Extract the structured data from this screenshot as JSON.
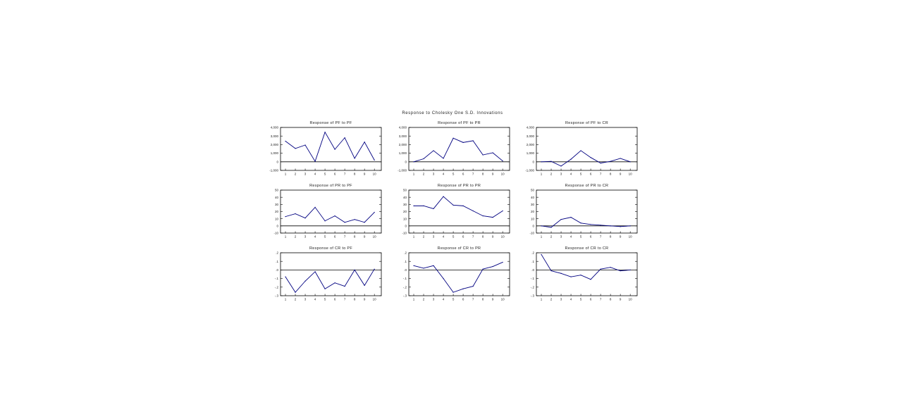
{
  "figure": {
    "title": "Response to Cholesky One S.D. Innovations"
  },
  "style": {
    "line_color": "#000080",
    "axis_color": "#000000",
    "text_color": "#222222",
    "background": "#ffffff"
  },
  "chart_data": [
    {
      "type": "line",
      "title": "Response of PF to PF",
      "x": [
        1,
        2,
        3,
        4,
        5,
        6,
        7,
        8,
        9,
        10
      ],
      "series": [
        {
          "values": [
            2400,
            1550,
            1950,
            50,
            3450,
            1450,
            2800,
            400,
            2300,
            200
          ]
        }
      ],
      "ylim": [
        -1000,
        4000
      ],
      "yticks": [
        -1000,
        0,
        1000,
        2000,
        3000,
        4000
      ],
      "ytick_labels": [
        "-1,000",
        "0",
        "1,000",
        "2,000",
        "3,000",
        "4,000"
      ]
    },
    {
      "type": "line",
      "title": "Response of PF to PR",
      "x": [
        1,
        2,
        3,
        4,
        5,
        6,
        7,
        8,
        9,
        10
      ],
      "series": [
        {
          "values": [
            0,
            350,
            1300,
            400,
            2750,
            2250,
            2450,
            800,
            1050,
            100
          ]
        }
      ],
      "ylim": [
        -1000,
        4000
      ],
      "yticks": [
        -1000,
        0,
        1000,
        2000,
        3000,
        4000
      ],
      "ytick_labels": [
        "-1,000",
        "0",
        "1,000",
        "2,000",
        "3,000",
        "4,000"
      ]
    },
    {
      "type": "line",
      "title": "Response of PF to CR",
      "x": [
        1,
        2,
        3,
        4,
        5,
        6,
        7,
        8,
        9,
        10
      ],
      "series": [
        {
          "values": [
            0,
            50,
            -500,
            300,
            1300,
            500,
            -150,
            50,
            400,
            0
          ]
        }
      ],
      "ylim": [
        -1000,
        4000
      ],
      "yticks": [
        -1000,
        0,
        1000,
        2000,
        3000,
        4000
      ],
      "ytick_labels": [
        "-1,000",
        "0",
        "1,000",
        "2,000",
        "3,000",
        "4,000"
      ]
    },
    {
      "type": "line",
      "title": "Response of PR to PF",
      "x": [
        1,
        2,
        3,
        4,
        5,
        6,
        7,
        8,
        9,
        10
      ],
      "series": [
        {
          "values": [
            13,
            17,
            11,
            26,
            7,
            14,
            5,
            9,
            5,
            19
          ]
        }
      ],
      "ylim": [
        -10,
        50
      ],
      "yticks": [
        -10,
        0,
        10,
        20,
        30,
        40,
        50
      ],
      "ytick_labels": [
        "-10",
        "0",
        "10",
        "20",
        "30",
        "40",
        "50"
      ]
    },
    {
      "type": "line",
      "title": "Response of PR to PR",
      "x": [
        1,
        2,
        3,
        4,
        5,
        6,
        7,
        8,
        9,
        10
      ],
      "series": [
        {
          "values": [
            28,
            28,
            24,
            41,
            29,
            28,
            21,
            14,
            12,
            21
          ]
        }
      ],
      "ylim": [
        -10,
        50
      ],
      "yticks": [
        -10,
        0,
        10,
        20,
        30,
        40,
        50
      ],
      "ytick_labels": [
        "-10",
        "0",
        "10",
        "20",
        "30",
        "40",
        "50"
      ]
    },
    {
      "type": "line",
      "title": "Response of PR to CR",
      "x": [
        1,
        2,
        3,
        4,
        5,
        6,
        7,
        8,
        9,
        10
      ],
      "series": [
        {
          "values": [
            0,
            -2,
            9,
            12,
            4,
            2,
            1,
            0,
            -1,
            0
          ]
        }
      ],
      "ylim": [
        -10,
        50
      ],
      "yticks": [
        -10,
        0,
        10,
        20,
        30,
        40,
        50
      ],
      "ytick_labels": [
        "-10",
        "0",
        "10",
        "20",
        "30",
        "40",
        "50"
      ]
    },
    {
      "type": "line",
      "title": "Response of CR to PF",
      "x": [
        1,
        2,
        3,
        4,
        5,
        6,
        7,
        8,
        9,
        10
      ],
      "series": [
        {
          "values": [
            -0.08,
            -0.26,
            -0.13,
            -0.02,
            -0.22,
            -0.15,
            -0.19,
            0.0,
            -0.18,
            0.01
          ]
        }
      ],
      "ylim": [
        -0.3,
        0.2
      ],
      "yticks": [
        -0.3,
        -0.2,
        -0.1,
        0.0,
        0.1,
        0.2
      ],
      "ytick_labels": [
        "-.3",
        "-.2",
        "-.1",
        ".0",
        ".1",
        ".2"
      ]
    },
    {
      "type": "line",
      "title": "Response of CR to PR",
      "x": [
        1,
        2,
        3,
        4,
        5,
        6,
        7,
        8,
        9,
        10
      ],
      "series": [
        {
          "values": [
            0.05,
            0.02,
            0.05,
            -0.1,
            -0.26,
            -0.22,
            -0.19,
            0.01,
            0.04,
            0.09
          ]
        }
      ],
      "ylim": [
        -0.3,
        0.2
      ],
      "yticks": [
        -0.3,
        -0.2,
        -0.1,
        0.0,
        0.1,
        0.2
      ],
      "ytick_labels": [
        "-.3",
        "-.2",
        "-.1",
        ".0",
        ".1",
        ".2"
      ]
    },
    {
      "type": "line",
      "title": "Response of CR to CR",
      "x": [
        1,
        2,
        3,
        4,
        5,
        6,
        7,
        8,
        9,
        10
      ],
      "series": [
        {
          "values": [
            0.18,
            -0.01,
            -0.04,
            -0.08,
            -0.06,
            -0.11,
            0.01,
            0.03,
            -0.01,
            0.0
          ]
        }
      ],
      "ylim": [
        -0.3,
        0.2
      ],
      "yticks": [
        -0.3,
        -0.2,
        -0.1,
        0.0,
        0.1,
        0.2
      ],
      "ytick_labels": [
        "-.3",
        "-.2",
        "-.1",
        ".0",
        ".1",
        ".2"
      ]
    }
  ]
}
